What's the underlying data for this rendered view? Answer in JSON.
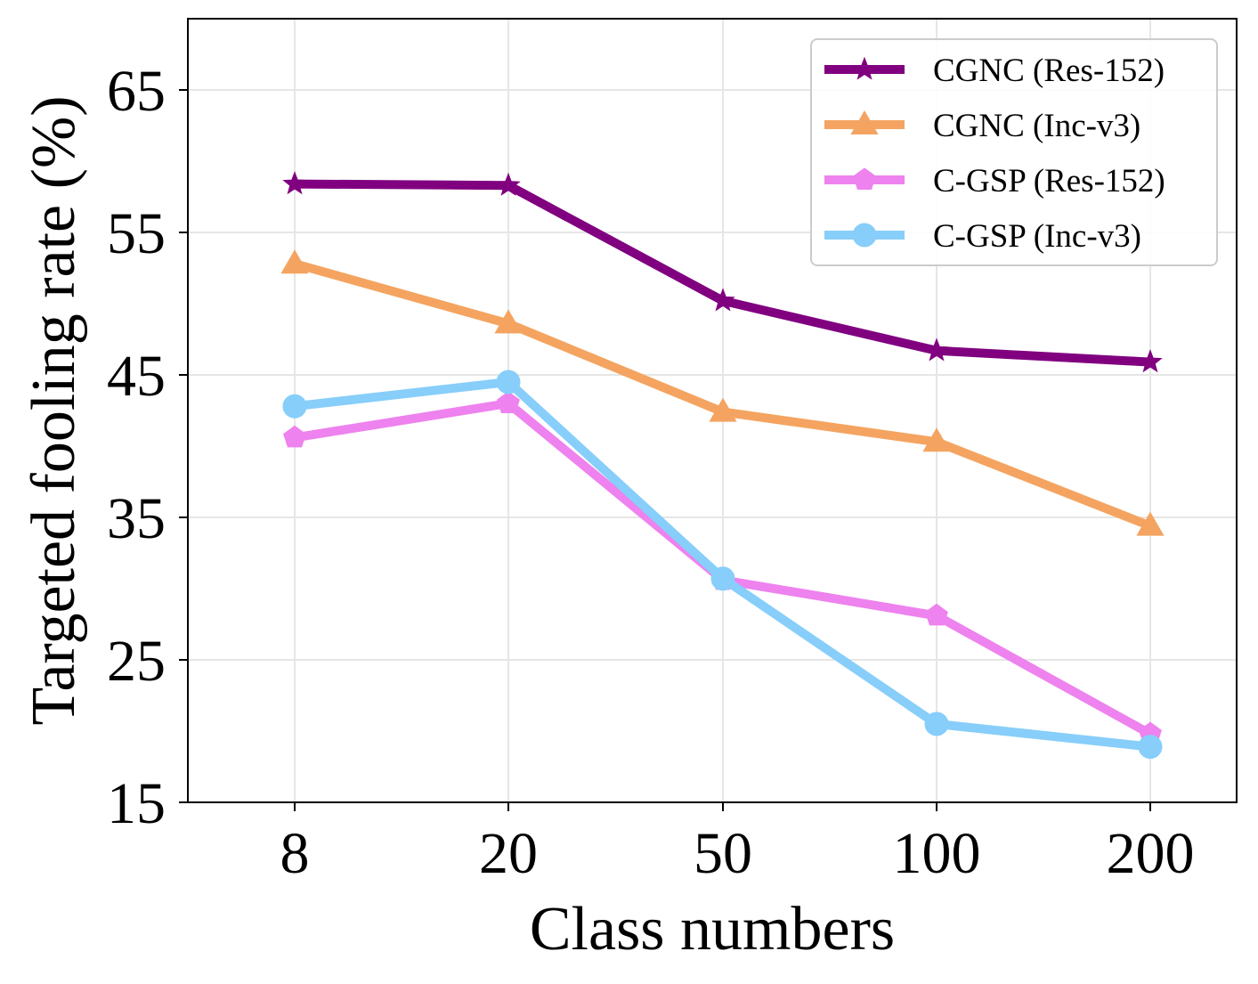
{
  "chart_data": {
    "type": "line",
    "title": "",
    "xlabel": "Class numbers",
    "ylabel": "Targeted fooling rate (%)",
    "categories": [
      "8",
      "20",
      "50",
      "100",
      "200"
    ],
    "ylim": [
      15,
      70
    ],
    "yticks": [
      15,
      25,
      35,
      45,
      55,
      65
    ],
    "grid": true,
    "legend_position": "top-right",
    "series": [
      {
        "name": "CGNC (Res-152)",
        "color": "#800080",
        "marker": "star",
        "values": [
          58.4,
          58.3,
          50.2,
          46.7,
          45.9
        ]
      },
      {
        "name": "CGNC (Inc-v3)",
        "color": "#F4A460",
        "marker": "triangle",
        "values": [
          52.8,
          48.6,
          42.4,
          40.3,
          34.4
        ]
      },
      {
        "name": "C-GSP (Res-152)",
        "color": "#EE82EE",
        "marker": "pentagon",
        "values": [
          40.6,
          43.0,
          30.6,
          28.1,
          19.8
        ]
      },
      {
        "name": "C-GSP (Inc-v3)",
        "color": "#87CEFA",
        "marker": "circle",
        "values": [
          42.8,
          44.5,
          30.7,
          20.5,
          18.9
        ]
      }
    ]
  }
}
